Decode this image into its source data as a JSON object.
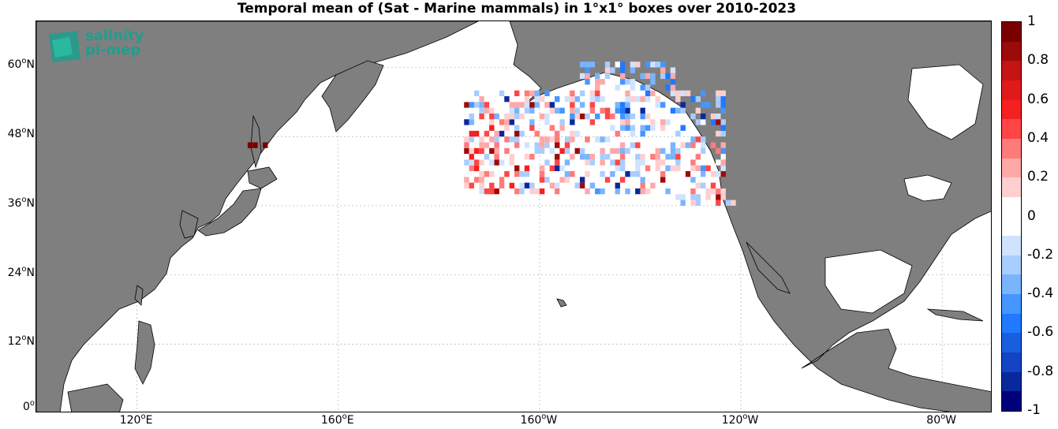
{
  "title": "Temporal mean of (Sat - Marine mammals) in 1°x1° boxes over 2010-2023",
  "logo": {
    "line1": "salinity",
    "line2": "pi-mep"
  },
  "lat_labels": [
    {
      "num": "60",
      "hem": "N"
    },
    {
      "num": "48",
      "hem": "N"
    },
    {
      "num": "36",
      "hem": "N"
    },
    {
      "num": "24",
      "hem": "N"
    },
    {
      "num": "12",
      "hem": "N"
    },
    {
      "num": "0",
      "hem": ""
    }
  ],
  "lat_values": [
    60,
    48,
    36,
    24,
    12,
    0
  ],
  "lon_labels": [
    {
      "num": "120",
      "hem": "E"
    },
    {
      "num": "160",
      "hem": "E"
    },
    {
      "num": "160",
      "hem": "W"
    },
    {
      "num": "120",
      "hem": "W"
    },
    {
      "num": "80",
      "hem": "W"
    }
  ],
  "lon_values": [
    120,
    160,
    200,
    240,
    280
  ],
  "colorbar": {
    "labels": [
      "1",
      "0.8",
      "0.6",
      "0.4",
      "0.2",
      "0",
      "-0.2",
      "-0.4",
      "-0.6",
      "-0.8",
      "-1"
    ],
    "range": [
      -1,
      1
    ],
    "colors": [
      "#7a0000",
      "#9d0a0a",
      "#c41414",
      "#e01a1a",
      "#f52020",
      "#ff4545",
      "#ff7a7a",
      "#ffa8a8",
      "#ffcfcf",
      "#ffffff",
      "#ffffff",
      "#cfe3ff",
      "#a8cdff",
      "#7ab4ff",
      "#4596ff",
      "#2079ff",
      "#1a5ee0",
      "#1443c4",
      "#0a289d",
      "#00007a"
    ]
  },
  "map_colors": {
    "land": "#7f7f7f",
    "ocean": "#ffffff",
    "grid": "#bbbbbb"
  },
  "extent": {
    "lon": [
      100,
      290
    ],
    "lat": [
      0,
      68
    ]
  }
}
